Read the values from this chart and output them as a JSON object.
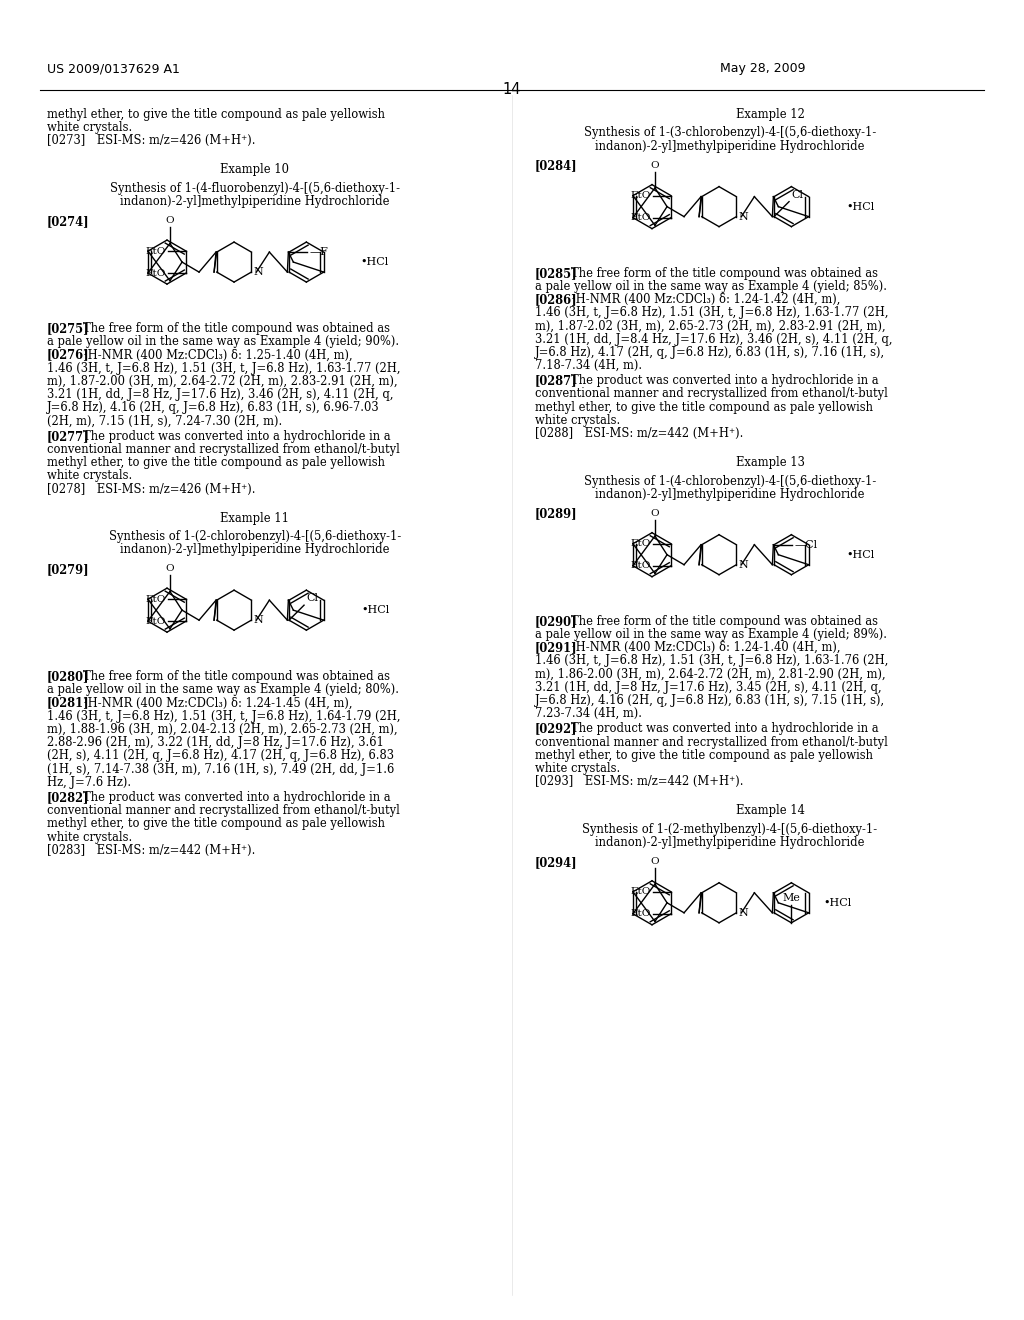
{
  "bg_color": "#ffffff",
  "header_left": "US 2009/0137629 A1",
  "header_right": "May 28, 2009",
  "page_number": "14",
  "left_col": {
    "intro_text": [
      "methyl ether, to give the title compound as pale yellowish",
      "white crystals."
    ],
    "para_0273": "[0273] ESI-MS: m/z=426 (M+H⁺).",
    "ex10_title": "Example 10",
    "ex10_subtitle": [
      "Synthesis of 1-(4-fluorobenzyl)-4-[(5,6-diethoxy-1-",
      "indanon)-2-yl]methylpiperidine Hydrochloride"
    ],
    "para_0274": "[0274]",
    "para_0275_label": "[0275]",
    "para_0275_text": [
      "The free form of the title compound was obtained as",
      "a pale yellow oil in the same way as Example 4 (yield; 90%)."
    ],
    "para_0276_label": "[0276]",
    "para_0276_text": [
      "¹H-NMR (400 Mz:CDCl₃) δ: 1.25-1.40 (4H, m),",
      "1.46 (3H, t, J=6.8 Hz), 1.51 (3H, t, J=6.8 Hz), 1.63-1.77 (2H,",
      "m), 1.87-2.00 (3H, m), 2.64-2.72 (2H, m), 2.83-2.91 (2H, m),",
      "3.21 (1H, dd, J=8 Hz, J=17.6 Hz), 3.46 (2H, s), 4.11 (2H, q,",
      "J=6.8 Hz), 4.16 (2H, q, J=6.8 Hz), 6.83 (1H, s), 6.96-7.03",
      "(2H, m), 7.15 (1H, s), 7.24-7.30 (2H, m)."
    ],
    "para_0277_label": "[0277]",
    "para_0277_text": [
      "The product was converted into a hydrochloride in a",
      "conventional manner and recrystallized from ethanol/t-butyl",
      "methyl ether, to give the title compound as pale yellowish",
      "white crystals."
    ],
    "para_0278": "[0278] ESI-MS: m/z=426 (M+H⁺).",
    "ex11_title": "Example 11",
    "ex11_subtitle": [
      "Synthesis of 1-(2-chlorobenzyl)-4-[(5,6-diethoxy-1-",
      "indanon)-2-yl]methylpiperidine Hydrochloride"
    ],
    "para_0279": "[0279]",
    "para_0280_label": "[0280]",
    "para_0280_text": [
      "The free form of the title compound was obtained as",
      "a pale yellow oil in the same way as Example 4 (yield; 80%)."
    ],
    "para_0281_label": "[0281]",
    "para_0281_text": [
      "¹H-NMR (400 Mz:CDCl₃) δ: 1.24-1.45 (4H, m),",
      "1.46 (3H, t, J=6.8 Hz), 1.51 (3H, t, J=6.8 Hz), 1.64-1.79 (2H,",
      "m), 1.88-1.96 (3H, m), 2.04-2.13 (2H, m), 2.65-2.73 (2H, m),",
      "2.88-2.96 (2H, m), 3.22 (1H, dd, J=8 Hz, J=17.6 Hz), 3.61",
      "(2H, s), 4.11 (2H, q, J=6.8 Hz), 4.17 (2H, q, J=6.8 Hz), 6.83",
      "(1H, s), 7.14-7.38 (3H, m), 7.16 (1H, s), 7.49 (2H, dd, J=1.6",
      "Hz, J=7.6 Hz)."
    ],
    "para_0282_label": "[0282]",
    "para_0282_text": [
      "The product was converted into a hydrochloride in a",
      "conventional manner and recrystallized from ethanol/t-butyl",
      "methyl ether, to give the title compound as pale yellowish",
      "white crystals."
    ],
    "para_0283": "[0283] ESI-MS: m/z=442 (M+H⁺)."
  },
  "right_col": {
    "ex12_title": "Example 12",
    "ex12_subtitle": [
      "Synthesis of 1-(3-chlorobenzyl)-4-[(5,6-diethoxy-1-",
      "indanon)-2-yl]methylpiperidine Hydrochloride"
    ],
    "para_0284": "[0284]",
    "para_0285_label": "[0285]",
    "para_0285_text": [
      "The free form of the title compound was obtained as",
      "a pale yellow oil in the same way as Example 4 (yield; 85%)."
    ],
    "para_0286_label": "[0286]",
    "para_0286_text": [
      "¹H-NMR (400 Mz:CDCl₃) δ: 1.24-1.42 (4H, m),",
      "1.46 (3H, t, J=6.8 Hz), 1.51 (3H, t, J=6.8 Hz), 1.63-1.77 (2H,",
      "m), 1.87-2.02 (3H, m), 2.65-2.73 (2H, m), 2.83-2.91 (2H, m),",
      "3.21 (1H, dd, J=8.4 Hz, J=17.6 Hz), 3.46 (2H, s), 4.11 (2H, q,",
      "J=6.8 Hz), 4.17 (2H, q, J=6.8 Hz), 6.83 (1H, s), 7.16 (1H, s),",
      "7.18-7.34 (4H, m)."
    ],
    "para_0287_label": "[0287]",
    "para_0287_text": [
      "The product was converted into a hydrochloride in a",
      "conventional manner and recrystallized from ethanol/t-butyl",
      "methyl ether, to give the title compound as pale yellowish",
      "white crystals."
    ],
    "para_0288": "[0288] ESI-MS: m/z=442 (M+H⁺).",
    "ex13_title": "Example 13",
    "ex13_subtitle": [
      "Synthesis of 1-(4-chlorobenzyl)-4-[(5,6-diethoxy-1-",
      "indanon)-2-yl]methylpiperidine Hydrochloride"
    ],
    "para_0289": "[0289]",
    "para_0290_label": "[0290]",
    "para_0290_text": [
      "The free form of the title compound was obtained as",
      "a pale yellow oil in the same way as Example 4 (yield; 89%)."
    ],
    "para_0291_label": "[0291]",
    "para_0291_text": [
      "¹H-NMR (400 Mz:CDCl₃) δ: 1.24-1.40 (4H, m),",
      "1.46 (3H, t, J=6.8 Hz), 1.51 (3H, t, J=6.8 Hz), 1.63-1.76 (2H,",
      "m), 1.86-2.00 (3H, m), 2.64-2.72 (2H, m), 2.81-2.90 (2H, m),",
      "3.21 (1H, dd, J=8 Hz, J=17.6 Hz), 3.45 (2H, s), 4.11 (2H, q,",
      "J=6.8 Hz), 4.16 (2H, q, J=6.8 Hz), 6.83 (1H, s), 7.15 (1H, s),",
      "7.23-7.34 (4H, m)."
    ],
    "para_0292_label": "[0292]",
    "para_0292_text": [
      "The product was converted into a hydrochloride in a",
      "conventional manner and recrystallized from ethanol/t-butyl",
      "methyl ether, to give the title compound as pale yellowish",
      "white crystals."
    ],
    "para_0293": "[0293] ESI-MS: m/z=442 (M+H⁺).",
    "ex14_title": "Example 14",
    "ex14_subtitle": [
      "Synthesis of 1-(2-methylbenzyl)-4-[(5,6-diethoxy-1-",
      "indanon)-2-yl]methylpiperidine Hydrochloride"
    ],
    "para_0294": "[0294]"
  }
}
